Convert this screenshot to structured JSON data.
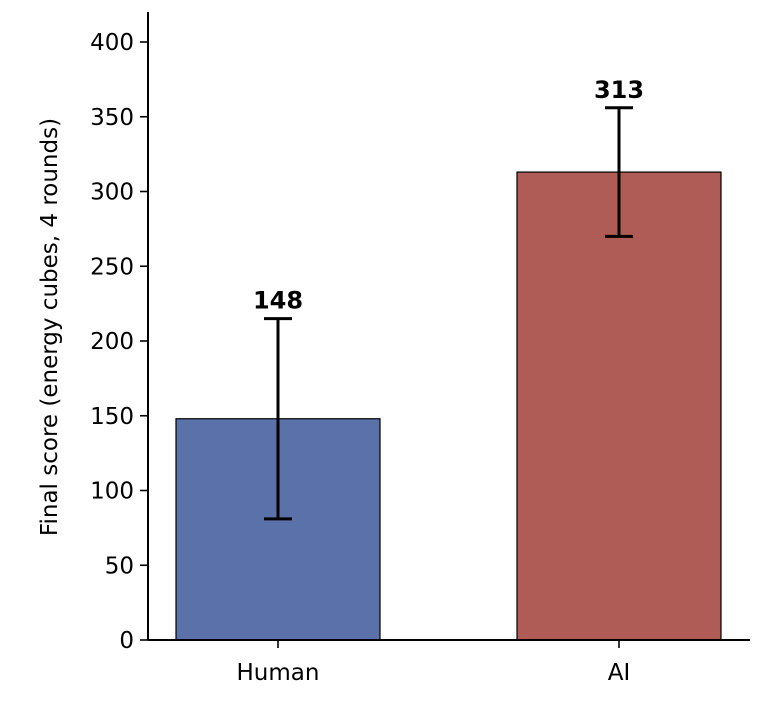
{
  "chart_data": {
    "type": "bar",
    "title": "",
    "xlabel": "",
    "ylabel": "Final score (energy cubes, 4 rounds)",
    "categories": [
      "Human",
      "AI"
    ],
    "values": [
      148,
      313
    ],
    "value_labels": [
      "148",
      "313"
    ],
    "error_bars": [
      {
        "lower": 81,
        "upper": 215
      },
      {
        "lower": 270,
        "upper": 356
      }
    ],
    "bar_colors": [
      "#5a71aa",
      "#af5b56"
    ],
    "ylim": [
      0,
      420
    ],
    "yticks": [
      0,
      50,
      100,
      150,
      200,
      250,
      300,
      350,
      400
    ],
    "ytick_labels": [
      "0",
      "50",
      "100",
      "150",
      "200",
      "250",
      "300",
      "350",
      "400"
    ],
    "grid": false,
    "legend": "none"
  }
}
